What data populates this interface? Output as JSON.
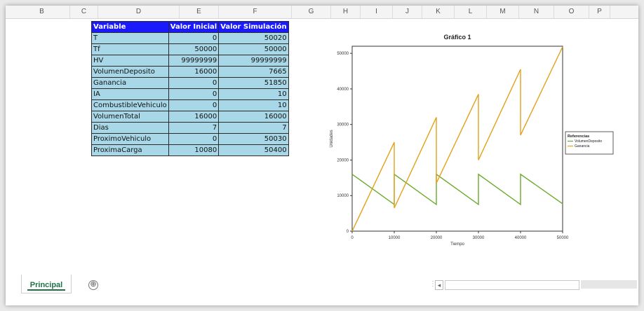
{
  "columns": [
    "B",
    "C",
    "D",
    "E",
    "F",
    "G",
    "H",
    "I",
    "J",
    "K",
    "L",
    "M",
    "N",
    "O",
    "P"
  ],
  "table": {
    "headers": [
      "Variable",
      "Valor Inicial",
      "Valor Simulación"
    ],
    "rows": [
      [
        "T",
        "0",
        "50020"
      ],
      [
        "Tf",
        "50000",
        "50000"
      ],
      [
        "HV",
        "99999999",
        "99999999"
      ],
      [
        "VolumenDeposito",
        "16000",
        "7665"
      ],
      [
        "Ganancia",
        "0",
        "51850"
      ],
      [
        "IA",
        "0",
        "10"
      ],
      [
        "CombustibleVehiculo",
        "0",
        "10"
      ],
      [
        "VolumenTotal",
        "16000",
        "16000"
      ],
      [
        "Dias",
        "7",
        "7"
      ],
      [
        "ProximoVehiculo",
        "0",
        "50030"
      ],
      [
        "ProximaCarga",
        "10080",
        "50400"
      ]
    ]
  },
  "chart_data": {
    "type": "line",
    "title": "Gráfico 1",
    "xlabel": "Tiempo",
    "ylabel": "Unidades",
    "xlim": [
      0,
      50000
    ],
    "ylim": [
      0,
      52000
    ],
    "x_ticks": [
      "0",
      "10000",
      "20000",
      "30000",
      "40000",
      "50000"
    ],
    "y_ticks": [
      "0",
      "10000",
      "20000",
      "30000",
      "40000",
      "50000"
    ],
    "legend_title": "Referencias",
    "legend_position": "right",
    "series": [
      {
        "name": "VolumenDeposito",
        "color": "#6aaa2c",
        "x": [
          0,
          10000,
          10000,
          20000,
          20000,
          30000,
          30000,
          40000,
          40000,
          50000
        ],
        "y": [
          16000,
          7500,
          16000,
          7500,
          16000,
          7500,
          16000,
          7500,
          16000,
          7700
        ]
      },
      {
        "name": "Ganancia",
        "color": "#e3a11a",
        "x": [
          0,
          10000,
          10000,
          20000,
          20000,
          30000,
          30000,
          40000,
          40000,
          50000
        ],
        "y": [
          0,
          25000,
          6500,
          32000,
          13500,
          38500,
          20000,
          45500,
          27000,
          51850
        ]
      }
    ]
  },
  "sheet_tabs": {
    "active": "Principal",
    "add_symbol": "⊕"
  },
  "scroll": {
    "left_arrow": "◂"
  }
}
